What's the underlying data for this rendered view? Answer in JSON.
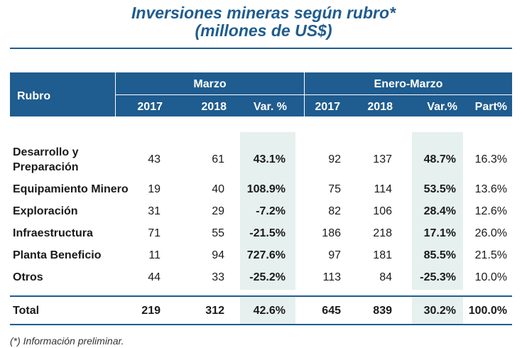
{
  "title": {
    "line1": "Inversiones mineras según rubro*",
    "line2": "(millones de US$)"
  },
  "header": {
    "rubro": "Rubro",
    "group_marzo": "Marzo",
    "group_enero_marzo": "Enero-Marzo",
    "columns": [
      "2017",
      "2018",
      "Var. %",
      "2017",
      "2018",
      "Var.%",
      "Part%"
    ]
  },
  "rows": [
    {
      "label_line1": "Desarrollo y",
      "label_line2": "Preparación",
      "values": [
        "43",
        "61",
        "43.1%",
        "92",
        "137",
        "48.7%",
        "16.3%"
      ]
    },
    {
      "label": "Equipamiento Minero",
      "values": [
        "19",
        "40",
        "108.9%",
        "75",
        "114",
        "53.5%",
        "13.6%"
      ]
    },
    {
      "label": "Exploración",
      "values": [
        "31",
        "29",
        "-7.2%",
        "82",
        "106",
        "28.4%",
        "12.6%"
      ]
    },
    {
      "label": "Infraestructura",
      "values": [
        "71",
        "55",
        "-21.5%",
        "186",
        "218",
        "17.1%",
        "26.0%"
      ]
    },
    {
      "label": "Planta Beneficio",
      "values": [
        "11",
        "94",
        "727.6%",
        "97",
        "181",
        "85.5%",
        "21.5%"
      ]
    },
    {
      "label": "Otros",
      "values": [
        "44",
        "33",
        "-25.2%",
        "113",
        "84",
        "-25.3%",
        "10.0%"
      ]
    }
  ],
  "total": {
    "label": "Total",
    "values": [
      "219",
      "312",
      "42.6%",
      "645",
      "839",
      "30.2%",
      "100.0%"
    ]
  },
  "footnote": "(*) Información preliminar.",
  "colors": {
    "header_bg": "#1f5c8f",
    "highlight_bg": "#e6f0ee",
    "title": "#1f5c8f"
  }
}
